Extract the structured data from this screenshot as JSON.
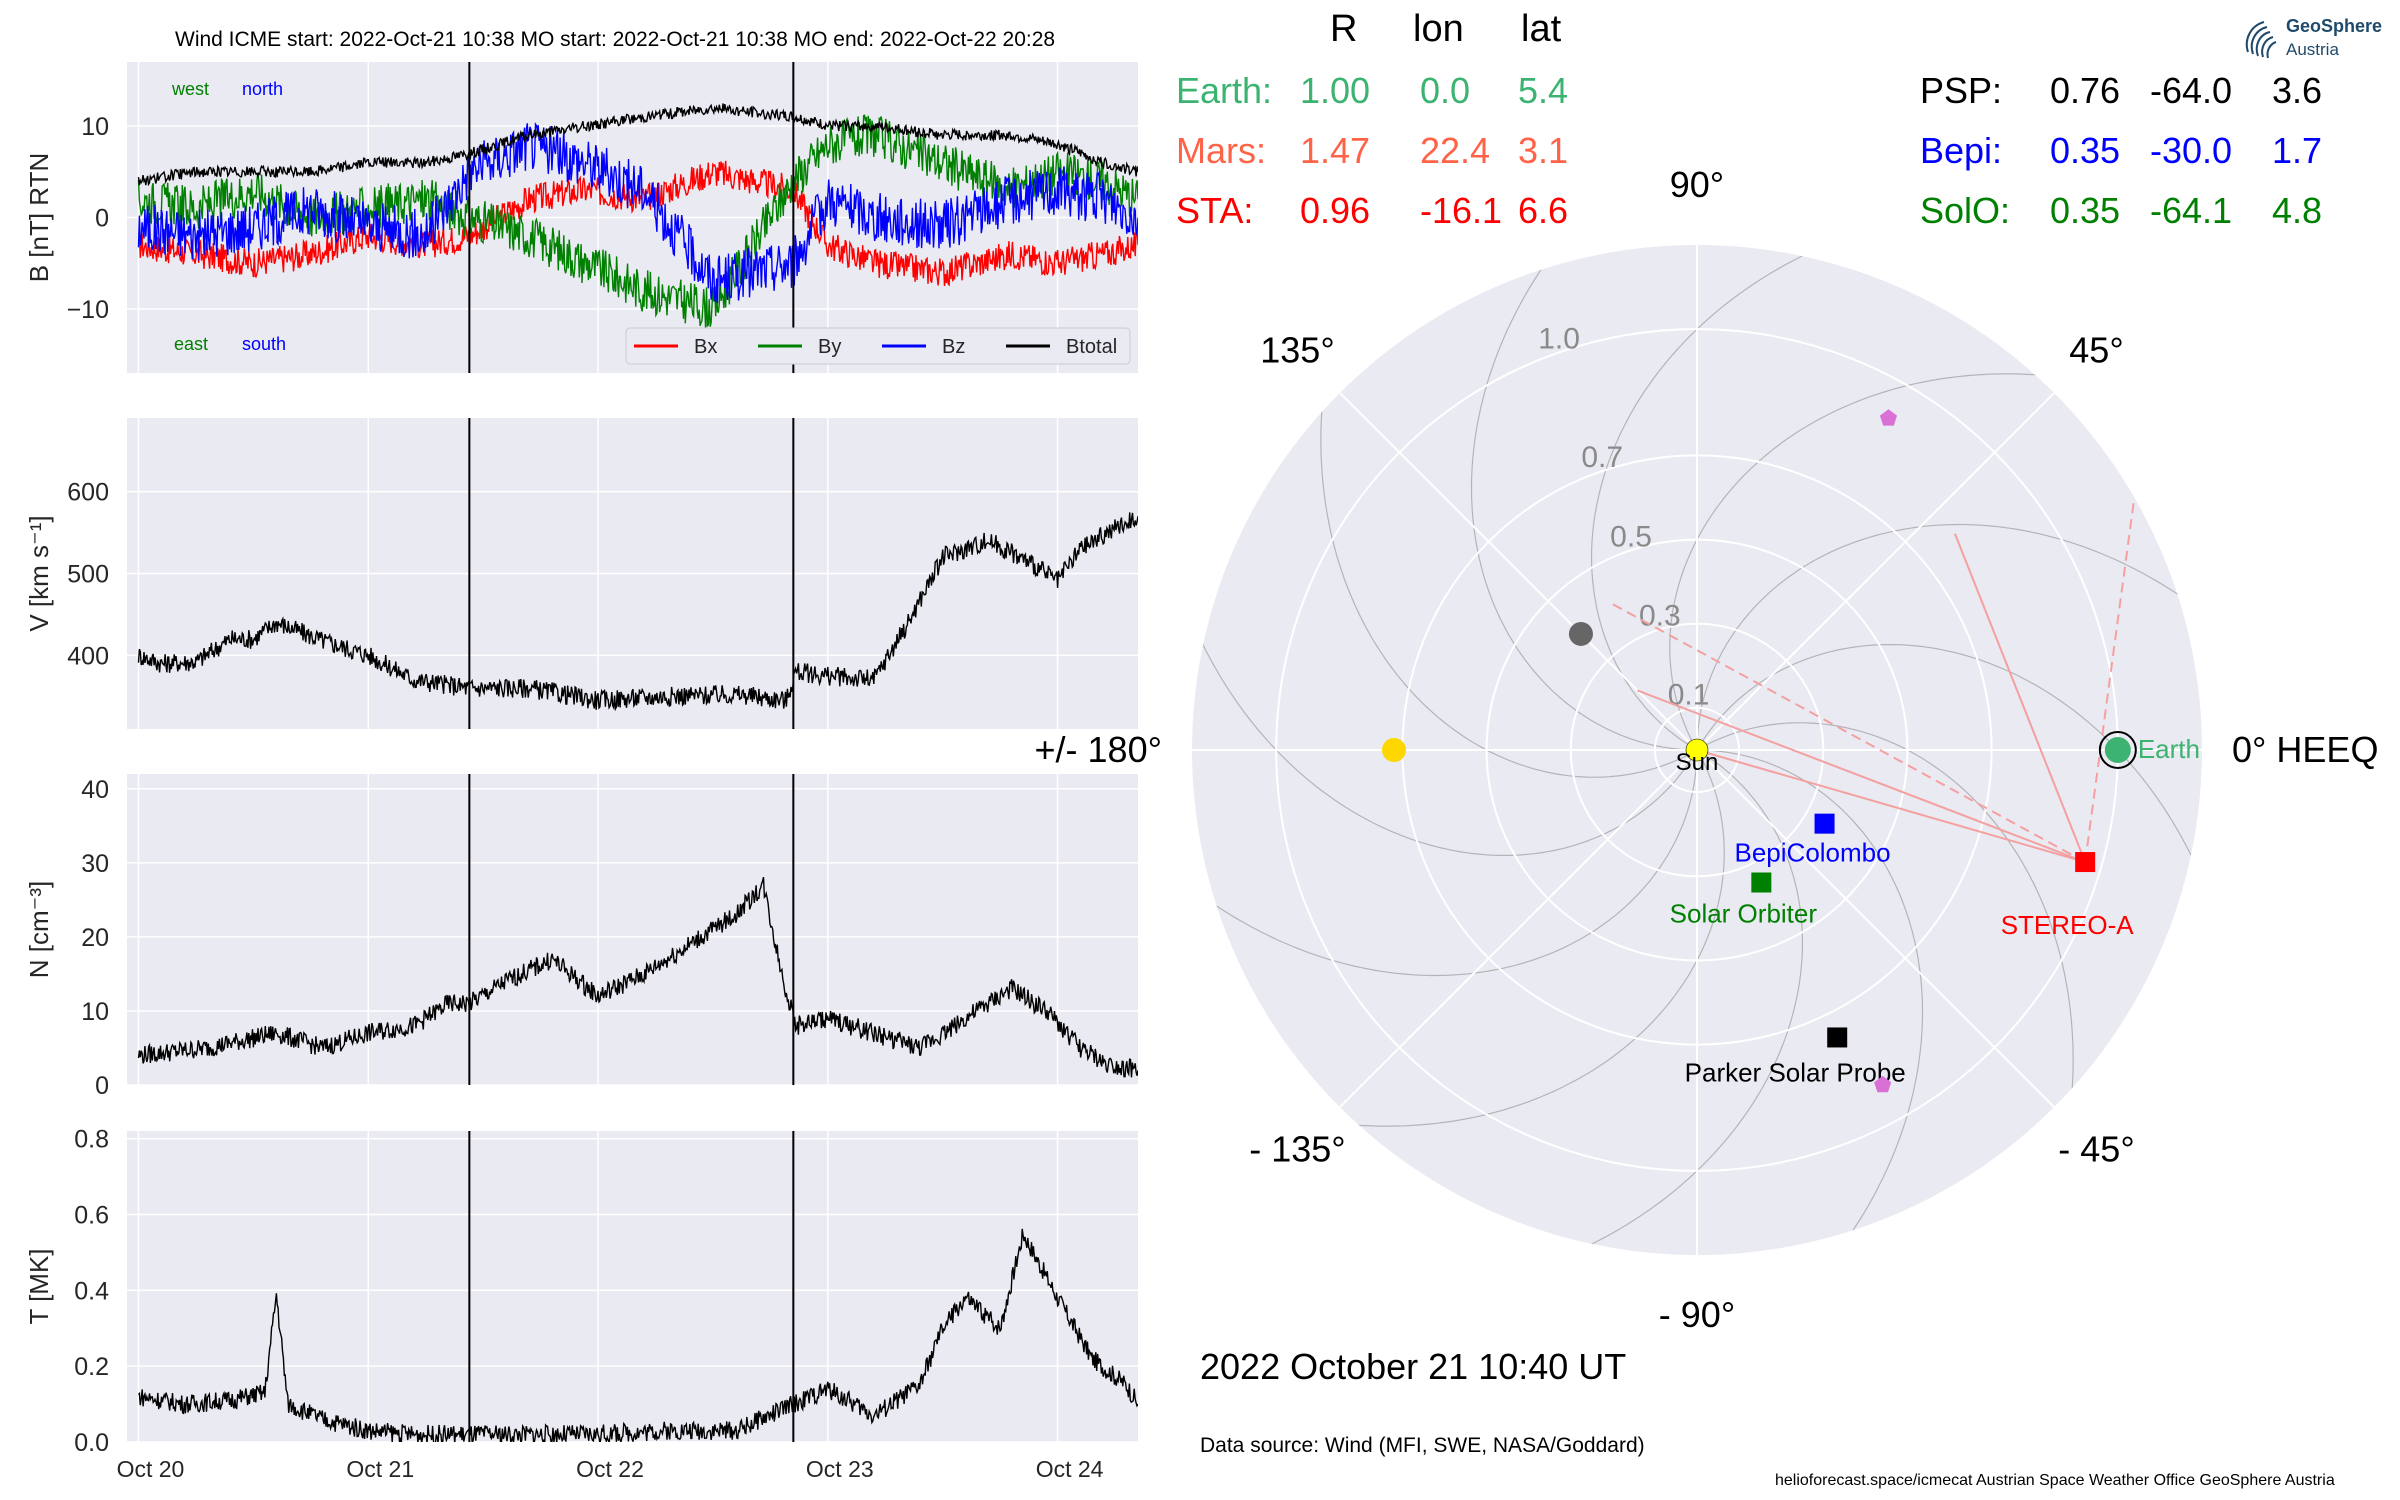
{
  "header": {
    "title": "Wind    ICME start: 2022-Oct-21 10:38   MO start: 2022-Oct-21 10:38   MO end: 2022-Oct-22 20:28",
    "table_head": [
      "R",
      "lon",
      "lat"
    ],
    "left_rows": [
      {
        "name": "Earth:",
        "r": "1.00",
        "lon": "0.0",
        "lat": "5.4",
        "color": "#3cb371"
      },
      {
        "name": "Mars:",
        "r": "1.47",
        "lon": "22.4",
        "lat": "3.1",
        "color": "#ff6347"
      },
      {
        "name": "STA:",
        "r": "0.96",
        "lon": "-16.1",
        "lat": "6.6",
        "color": "#ff0000"
      }
    ],
    "right_rows": [
      {
        "name": "PSP:",
        "r": "0.76",
        "lon": "-64.0",
        "lat": "3.6",
        "color": "#000000"
      },
      {
        "name": "Bepi:",
        "r": "0.35",
        "lon": "-30.0",
        "lat": "1.7",
        "color": "#0000ff"
      },
      {
        "name": "SolO:",
        "r": "0.35",
        "lon": "-64.1",
        "lat": "4.8",
        "color": "#008000"
      }
    ]
  },
  "logo": {
    "title": "GeoSphere",
    "subtitle": "Austria"
  },
  "footer": {
    "date": "2022 October 21  10:40 UT",
    "source": "Data source: Wind (MFI, SWE, NASA/Goddard)",
    "credits": "helioforecast.space/icmecat   Austrian Space Weather Office   GeoSphere Austria"
  },
  "chart_data": [
    {
      "type": "line",
      "panel": "magnetic field",
      "ylabel": "B [nT] RTN",
      "ylim": [
        -17,
        17
      ],
      "yticks": [
        -10,
        0,
        10
      ],
      "x_tick_labels": [
        "Oct 20",
        "Oct 21",
        "Oct 22",
        "Oct 23",
        "Oct 24"
      ],
      "xlim_days": [
        -0.05,
        4.35
      ],
      "event_lines_days": [
        1.44,
        2.85
      ],
      "annotations": {
        "west": "west",
        "north": "north",
        "east": "east",
        "south": "south"
      },
      "legend": "lower-right",
      "series": [
        {
          "name": "Bx",
          "color": "#ff0000",
          "x_days": [
            0,
            0.25,
            0.5,
            0.75,
            1.0,
            1.25,
            1.44,
            1.7,
            1.95,
            2.2,
            2.5,
            2.85,
            3.0,
            3.2,
            3.5,
            3.8,
            4.0,
            4.2,
            4.35
          ],
          "values": [
            -3,
            -4,
            -5,
            -4,
            -2,
            -3,
            -2,
            2,
            3,
            2,
            5,
            3,
            -3,
            -5,
            -6,
            -4,
            -5,
            -4,
            -3
          ]
        },
        {
          "name": "By",
          "color": "#008000",
          "x_days": [
            0,
            0.25,
            0.5,
            0.75,
            1.0,
            1.25,
            1.44,
            1.7,
            1.95,
            2.2,
            2.5,
            2.85,
            3.0,
            3.2,
            3.5,
            3.8,
            4.0,
            4.2,
            4.35
          ],
          "values": [
            2,
            1,
            3,
            0,
            1,
            2,
            0,
            -2,
            -5,
            -8,
            -10,
            4,
            8,
            9,
            6,
            3,
            5,
            4,
            2
          ]
        },
        {
          "name": "Bz",
          "color": "#0000ff",
          "x_days": [
            0,
            0.25,
            0.5,
            0.75,
            1.0,
            1.25,
            1.44,
            1.7,
            1.95,
            2.2,
            2.5,
            2.85,
            3.0,
            3.2,
            3.5,
            3.8,
            4.0,
            4.2,
            4.35
          ],
          "values": [
            -1,
            -2,
            -1,
            1,
            -1,
            -2,
            5,
            8,
            6,
            3,
            -7,
            -5,
            2,
            0,
            -1,
            2,
            3,
            2,
            0
          ]
        },
        {
          "name": "Btotal",
          "color": "#000000",
          "x_days": [
            0,
            0.25,
            0.5,
            0.75,
            1.0,
            1.25,
            1.44,
            1.7,
            1.95,
            2.2,
            2.5,
            2.85,
            3.0,
            3.2,
            3.5,
            3.8,
            4.0,
            4.2,
            4.35
          ],
          "values": [
            4,
            5,
            5,
            5,
            6,
            6,
            7,
            9,
            10,
            11,
            12,
            11,
            10,
            10,
            9,
            9,
            8,
            6,
            5
          ]
        }
      ]
    },
    {
      "type": "line",
      "panel": "speed",
      "ylabel": "V [km s⁻¹]",
      "ylim": [
        310,
        690
      ],
      "yticks": [
        400,
        500,
        600
      ],
      "x_days": [
        0,
        0.1,
        0.25,
        0.4,
        0.5,
        0.6,
        0.8,
        1.0,
        1.2,
        1.44,
        1.7,
        2.0,
        2.3,
        2.6,
        2.82,
        2.86,
        3.0,
        3.2,
        3.35,
        3.5,
        3.7,
        3.9,
        4.0,
        4.1,
        4.25,
        4.35
      ],
      "values": [
        400,
        390,
        392,
        420,
        420,
        440,
        418,
        400,
        370,
        360,
        360,
        345,
        350,
        352,
        345,
        380,
        375,
        370,
        440,
        520,
        540,
        510,
        490,
        530,
        555,
        570
      ],
      "series": [
        {
          "color": "#000000"
        }
      ]
    },
    {
      "type": "line",
      "panel": "density",
      "ylabel": "N [cm⁻³]",
      "ylim": [
        0,
        42
      ],
      "yticks": [
        0,
        10,
        20,
        30,
        40
      ],
      "x_days": [
        0,
        0.3,
        0.6,
        0.8,
        1.0,
        1.2,
        1.35,
        1.44,
        1.6,
        1.8,
        2.0,
        2.2,
        2.4,
        2.6,
        2.72,
        2.8,
        2.86,
        3.0,
        3.2,
        3.4,
        3.6,
        3.8,
        3.95,
        4.1,
        4.2,
        4.35
      ],
      "values": [
        4,
        5,
        7,
        5,
        7,
        8,
        11,
        11,
        14,
        17,
        12,
        15,
        19,
        23,
        27,
        15,
        8,
        9,
        7,
        5,
        9,
        13,
        10,
        5,
        3,
        2
      ],
      "series": [
        {
          "color": "#000000"
        }
      ]
    },
    {
      "type": "line",
      "panel": "temperature",
      "ylabel": "T [MK]",
      "ylim": [
        0,
        0.82
      ],
      "yticks": [
        0.0,
        0.2,
        0.4,
        0.6,
        0.8
      ],
      "x_days": [
        0,
        0.2,
        0.4,
        0.55,
        0.6,
        0.65,
        0.8,
        1.0,
        1.2,
        1.44,
        1.7,
        2.0,
        2.3,
        2.6,
        2.85,
        3.0,
        3.2,
        3.4,
        3.5,
        3.6,
        3.75,
        3.85,
        4.0,
        4.15,
        4.3,
        4.35
      ],
      "values": [
        0.12,
        0.1,
        0.11,
        0.13,
        0.39,
        0.1,
        0.06,
        0.03,
        0.02,
        0.02,
        0.02,
        0.02,
        0.03,
        0.03,
        0.1,
        0.14,
        0.07,
        0.15,
        0.3,
        0.38,
        0.3,
        0.55,
        0.38,
        0.22,
        0.15,
        0.1
      ],
      "series": [
        {
          "color": "#000000"
        }
      ]
    },
    {
      "type": "scatter",
      "panel": "heliosphere position plot (polar)",
      "r_labels": [
        "0.1",
        "0.3",
        "0.5",
        "0.7",
        "1.0"
      ],
      "r_values": [
        0.1,
        0.3,
        0.5,
        0.7,
        1.0
      ],
      "rmax": 1.2,
      "angle_labels": [
        {
          "angle": 0,
          "label": "0° HEEQ"
        },
        {
          "angle": 45,
          "label": "45°"
        },
        {
          "angle": 90,
          "label": "90°"
        },
        {
          "angle": 135,
          "label": "135°"
        },
        {
          "angle": 180,
          "label": "+/- 180°"
        },
        {
          "angle": -135,
          "label": "- 135°"
        },
        {
          "angle": -90,
          "label": "- 90°"
        },
        {
          "angle": -45,
          "label": "- 45°"
        }
      ],
      "points": [
        {
          "name": "Earth",
          "label": "Earth",
          "r": 1.0,
          "lon": 0.0,
          "color": "#3cb371",
          "marker": "circle"
        },
        {
          "name": "STEREO-A",
          "label": "STEREO-A",
          "r": 0.96,
          "lon": -16.1,
          "color": "#ff0000",
          "marker": "square"
        },
        {
          "name": "BepiColombo",
          "label": "BepiColombo",
          "r": 0.35,
          "lon": -30.0,
          "color": "#0000ff",
          "marker": "square"
        },
        {
          "name": "Solar Orbiter",
          "label": "Solar Orbiter",
          "r": 0.35,
          "lon": -64.1,
          "color": "#008000",
          "marker": "square"
        },
        {
          "name": "Parker Solar Probe",
          "label": "Parker Solar Probe",
          "r": 0.76,
          "lon": -64.0,
          "color": "#000000",
          "marker": "square"
        },
        {
          "name": "Mars-like grey",
          "label": "",
          "r": 0.39,
          "lon": 135.0,
          "color": "#666666",
          "marker": "circle"
        },
        {
          "name": "yellow body",
          "label": "",
          "r": 0.72,
          "lon": 180.0,
          "color": "#ffd700",
          "marker": "circle"
        },
        {
          "name": "pentagon a",
          "label": "",
          "r": 0.91,
          "lon": 60.0,
          "color": "#da70d6",
          "marker": "pentagon"
        },
        {
          "name": "pentagon b",
          "label": "",
          "r": 0.91,
          "lon": -61.0,
          "color": "#da70d6",
          "marker": "pentagon"
        },
        {
          "name": "Sun",
          "label": "Sun",
          "r": 0.0,
          "lon": 0.0,
          "color": "#ffff00",
          "marker": "circle"
        }
      ],
      "sta_fov": [
        {
          "style": "solid",
          "to_r": 0.8,
          "to_lon": 40.0
        },
        {
          "style": "solid",
          "to_r": 0.2,
          "to_lon": 135.0
        },
        {
          "style": "dashed",
          "to_r": 1.2,
          "to_lon": 30.0
        },
        {
          "style": "dashed",
          "to_r": 0.4,
          "to_lon": 120.0
        }
      ]
    }
  ]
}
